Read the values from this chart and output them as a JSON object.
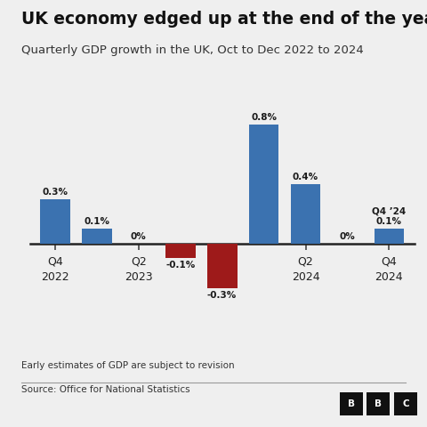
{
  "title": "UK economy edged up at the end of the year",
  "subtitle": "Quarterly GDP growth in the UK, Oct to Dec 2022 to 2024",
  "xtick_labels": [
    "Q4\n2022",
    "Q2\n2023",
    "Q4\n2023",
    "Q2\n2024",
    "Q4\n2024"
  ],
  "xtick_positions": [
    0,
    2,
    4,
    6,
    8
  ],
  "values": [
    0.3,
    0.1,
    0.0,
    -0.1,
    -0.3,
    0.8,
    0.4,
    0.0,
    0.1
  ],
  "bar_labels": [
    "0.3%",
    "0.1%",
    "0%",
    "-0.1%",
    "-0.3%",
    "0.8%",
    "0.4%",
    "0%",
    "Q4 ’24\n0.1%"
  ],
  "bar_colors": [
    "#3b72b0",
    "#3b72b0",
    "#3b72b0",
    "#9e1a1a",
    "#9e1a1a",
    "#3b72b0",
    "#3b72b0",
    "#3b72b0",
    "#3b72b0"
  ],
  "background_color": "#efefef",
  "source_text": "Source: Office for National Statistics",
  "footnote": "Early estimates of GDP are subject to revision",
  "ylim": [
    -0.46,
    0.98
  ],
  "title_fontsize": 13.5,
  "subtitle_fontsize": 9.5
}
